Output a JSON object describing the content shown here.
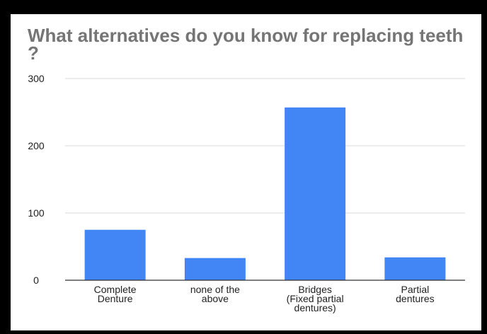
{
  "chart_data": {
    "type": "bar",
    "title": "What alternatives  do you know for replacing teeth ?",
    "categories": [
      [
        "Complete",
        "Denture"
      ],
      [
        "none of the",
        "above"
      ],
      [
        "Bridges",
        "(Fixed partial",
        "dentures)"
      ],
      [
        "Partial",
        "dentures"
      ]
    ],
    "values": [
      75,
      33,
      257,
      34
    ],
    "ylim": [
      0,
      300
    ],
    "yticks": [
      0,
      100,
      200,
      300
    ],
    "grid": true,
    "legend": "none",
    "colors": {
      "bar": "#4285f4",
      "grid": "#d9d9d9",
      "baseline": "#333333"
    }
  }
}
